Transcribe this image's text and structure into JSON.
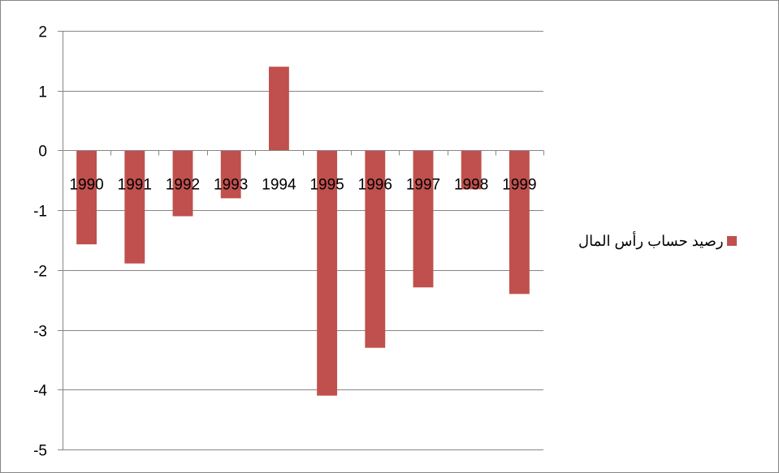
{
  "chart_data": {
    "type": "bar",
    "categories": [
      "1990",
      "1991",
      "1992",
      "1993",
      "1994",
      "1995",
      "1996",
      "1997",
      "1998",
      "1999"
    ],
    "series": [
      {
        "name": "رصيد حساب رأس المال",
        "values": [
          -1.57,
          -1.89,
          -1.1,
          -0.8,
          1.4,
          -4.1,
          -3.3,
          -2.29,
          -0.65,
          -2.4
        ],
        "color": "#C0504D"
      }
    ],
    "yticks": [
      2,
      1,
      0,
      -1,
      -2,
      -3,
      -4,
      -5
    ],
    "ylim": [
      -5,
      2
    ],
    "grid": true,
    "legend_position": "right"
  }
}
